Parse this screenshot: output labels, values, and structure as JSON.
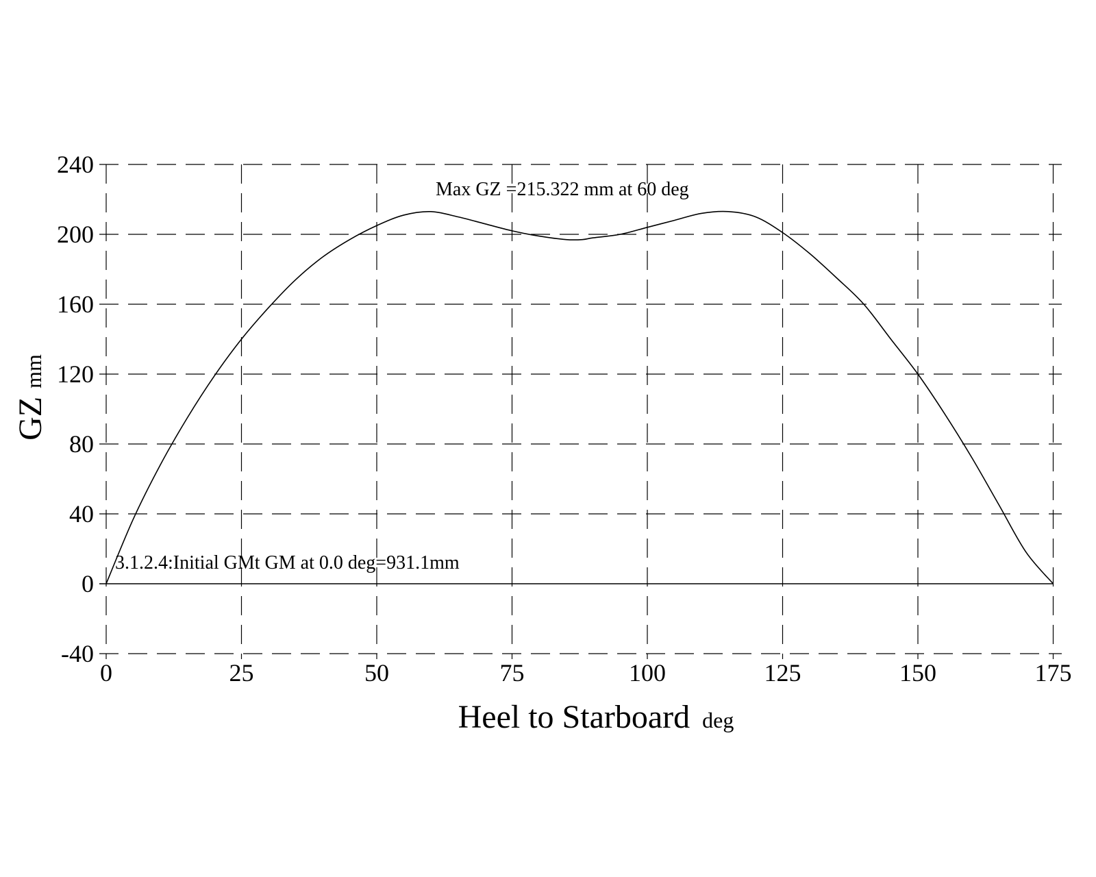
{
  "chart_data": {
    "type": "line",
    "xlabel": "Heel to Starboard",
    "xlabel_unit": "deg",
    "ylabel": "GZ",
    "ylabel_unit": "mm",
    "xlim": [
      0,
      180
    ],
    "ylim": [
      -40,
      240
    ],
    "x_ticks": [
      0,
      25,
      50,
      75,
      100,
      125,
      150,
      175
    ],
    "y_ticks": [
      -40,
      0,
      40,
      80,
      120,
      160,
      200,
      240
    ],
    "x_tick_labels": [
      "0",
      "25",
      "50",
      "75",
      "100",
      "125",
      "150",
      "175"
    ],
    "y_tick_labels": [
      "-40",
      "0",
      "40",
      "80",
      "120",
      "160",
      "200",
      "240"
    ],
    "grid": true,
    "annotations": [
      {
        "text": "Max GZ =215.322 mm at 60 deg",
        "x": 60,
        "y": 225
      },
      {
        "text": "3.1.2.4:Initial GMt GM at 0.0 deg=931.1mm",
        "x": 1,
        "y": 5
      }
    ],
    "series": [
      {
        "x": [
          0,
          5,
          10,
          15,
          20,
          25,
          30,
          35,
          40,
          45,
          50,
          55,
          60,
          65,
          70,
          75,
          80,
          85,
          88,
          90,
          95,
          100,
          105,
          110,
          115,
          120,
          125,
          130,
          135,
          140,
          145,
          150,
          155,
          160,
          165,
          170,
          175
        ],
        "y": [
          0,
          37,
          68,
          95,
          119,
          140,
          158,
          174,
          187,
          197,
          205,
          211,
          213,
          210,
          206,
          202,
          199,
          197,
          197,
          198,
          200,
          204,
          208,
          212,
          213,
          210,
          201,
          189,
          175,
          160,
          140,
          120,
          97,
          72,
          45,
          18,
          0
        ]
      }
    ]
  }
}
